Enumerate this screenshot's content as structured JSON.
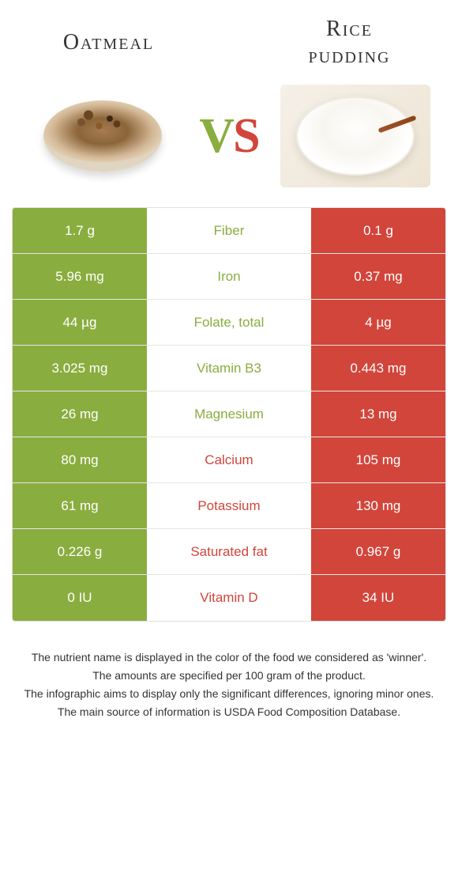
{
  "header": {
    "left_title": "Oatmeal",
    "right_title_line1": "Rice",
    "right_title_line2": "pudding"
  },
  "vs": {
    "v": "V",
    "s": "S"
  },
  "colors": {
    "left": "#8aad3f",
    "right": "#d2453a"
  },
  "rows": [
    {
      "left": "1.7 g",
      "label": "Fiber",
      "right": "0.1 g",
      "winner": "left"
    },
    {
      "left": "5.96 mg",
      "label": "Iron",
      "right": "0.37 mg",
      "winner": "left"
    },
    {
      "left": "44 µg",
      "label": "Folate, total",
      "right": "4 µg",
      "winner": "left"
    },
    {
      "left": "3.025 mg",
      "label": "Vitamin B3",
      "right": "0.443 mg",
      "winner": "left"
    },
    {
      "left": "26 mg",
      "label": "Magnesium",
      "right": "13 mg",
      "winner": "left"
    },
    {
      "left": "80 mg",
      "label": "Calcium",
      "right": "105 mg",
      "winner": "right"
    },
    {
      "left": "61 mg",
      "label": "Potassium",
      "right": "130 mg",
      "winner": "right"
    },
    {
      "left": "0.226 g",
      "label": "Saturated fat",
      "right": "0.967 g",
      "winner": "right"
    },
    {
      "left": "0 IU",
      "label": "Vitamin D",
      "right": "34 IU",
      "winner": "right"
    }
  ],
  "footer": {
    "line1": "The nutrient name is displayed in the color of the food we considered as 'winner'.",
    "line2": "The amounts are specified per 100 gram of the product.",
    "line3": "The infographic aims to display only the significant differences, ignoring minor ones.",
    "line4": "The main source of information is USDA Food Composition Database."
  }
}
